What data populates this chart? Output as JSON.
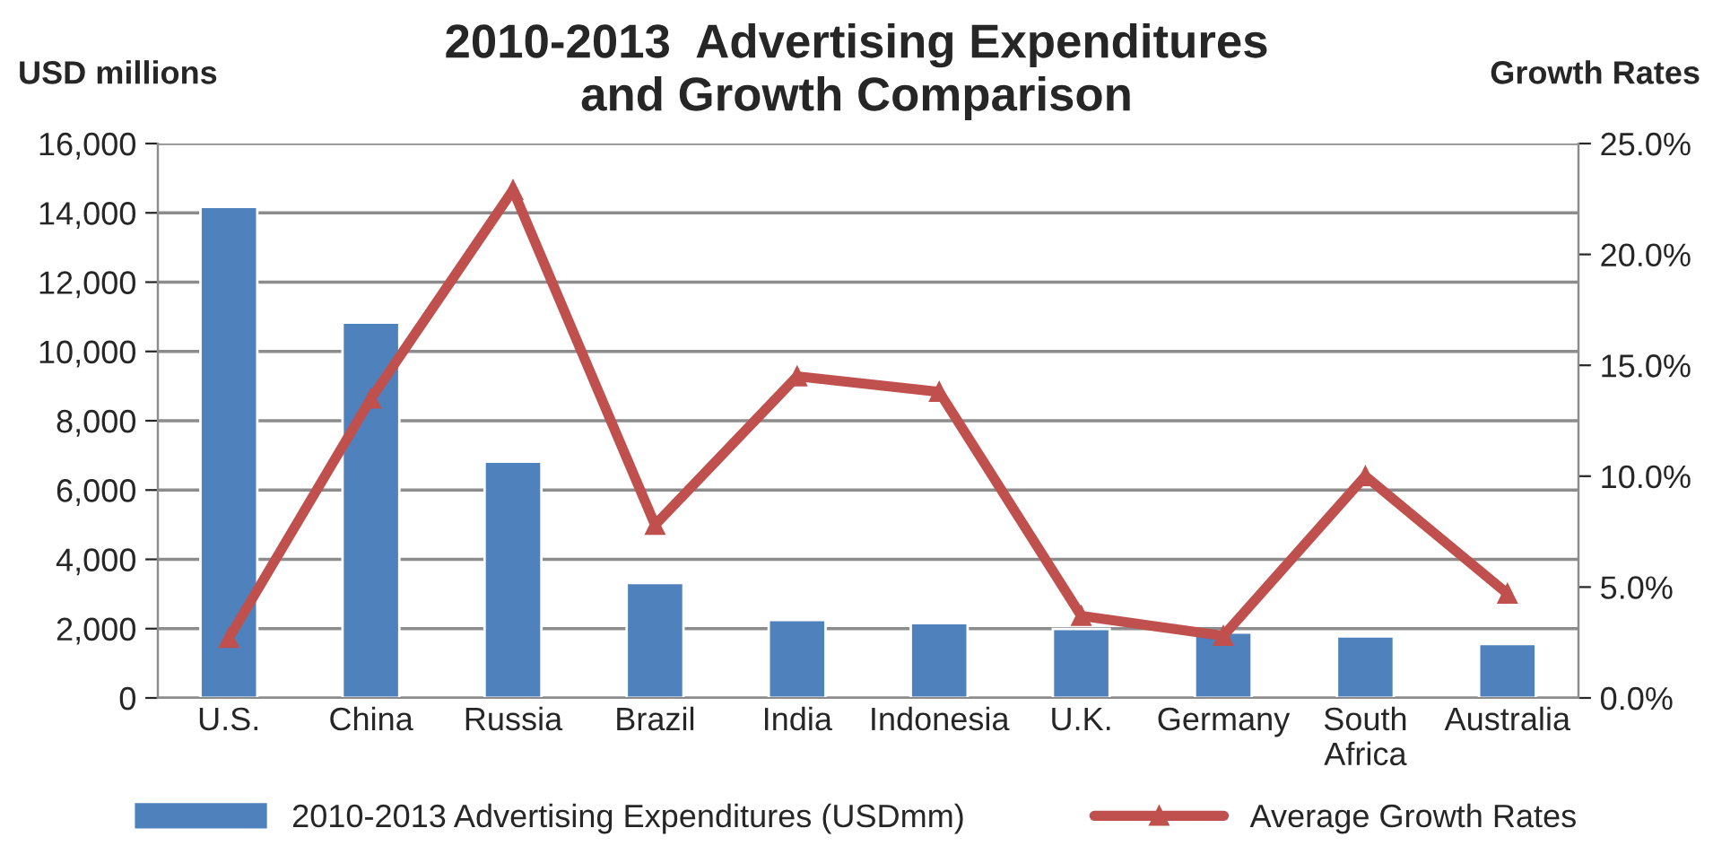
{
  "chart_data": {
    "type": "bar",
    "title": "2010-2013  Advertising Expenditures\nand Growth Comparison",
    "ylabel": "USD millions",
    "y2label": "Growth Rates",
    "categories": [
      "U.S.",
      "China",
      "Russia",
      "Brazil",
      "India",
      "Indonesia",
      "U.K.",
      "Germany",
      "South\nAfrica",
      "Australia"
    ],
    "series": [
      {
        "name": "2010-2013 Advertising Expenditures (USDmm)",
        "color": "#4f81bd",
        "values": [
          14170,
          10830,
          6820,
          3320,
          2250,
          2160,
          1990,
          1890,
          1780,
          1560
        ]
      },
      {
        "name": "Average Growth Rates",
        "type": "line",
        "axis": "y2",
        "color": "#c0504d",
        "marker": "triangle",
        "line_style": "solid",
        "values": [
          2.7,
          13.5,
          22.9,
          7.8,
          14.5,
          13.8,
          3.7,
          2.8,
          10.0,
          4.7
        ]
      }
    ],
    "ylim": [
      0,
      16000
    ],
    "yticks": [
      {
        "value": 0,
        "label": "0"
      },
      {
        "value": 2000,
        "label": "2,000"
      },
      {
        "value": 4000,
        "label": "4,000"
      },
      {
        "value": 6000,
        "label": "6,000"
      },
      {
        "value": 8000,
        "label": "8,000"
      },
      {
        "value": 10000,
        "label": "10,000"
      },
      {
        "value": 12000,
        "label": "12,000"
      },
      {
        "value": 14000,
        "label": "14,000"
      },
      {
        "value": 16000,
        "label": "16,000"
      }
    ],
    "y2lim": [
      0,
      25
    ],
    "y2ticks": [
      {
        "value": 0,
        "label": "0.0%"
      },
      {
        "value": 5,
        "label": "5.0%"
      },
      {
        "value": 10,
        "label": "10.0%"
      },
      {
        "value": 15,
        "label": "15.0%"
      },
      {
        "value": 20,
        "label": "20.0%"
      },
      {
        "value": 25,
        "label": "25.0%"
      }
    ],
    "grid": "y",
    "legend": "bottom"
  }
}
